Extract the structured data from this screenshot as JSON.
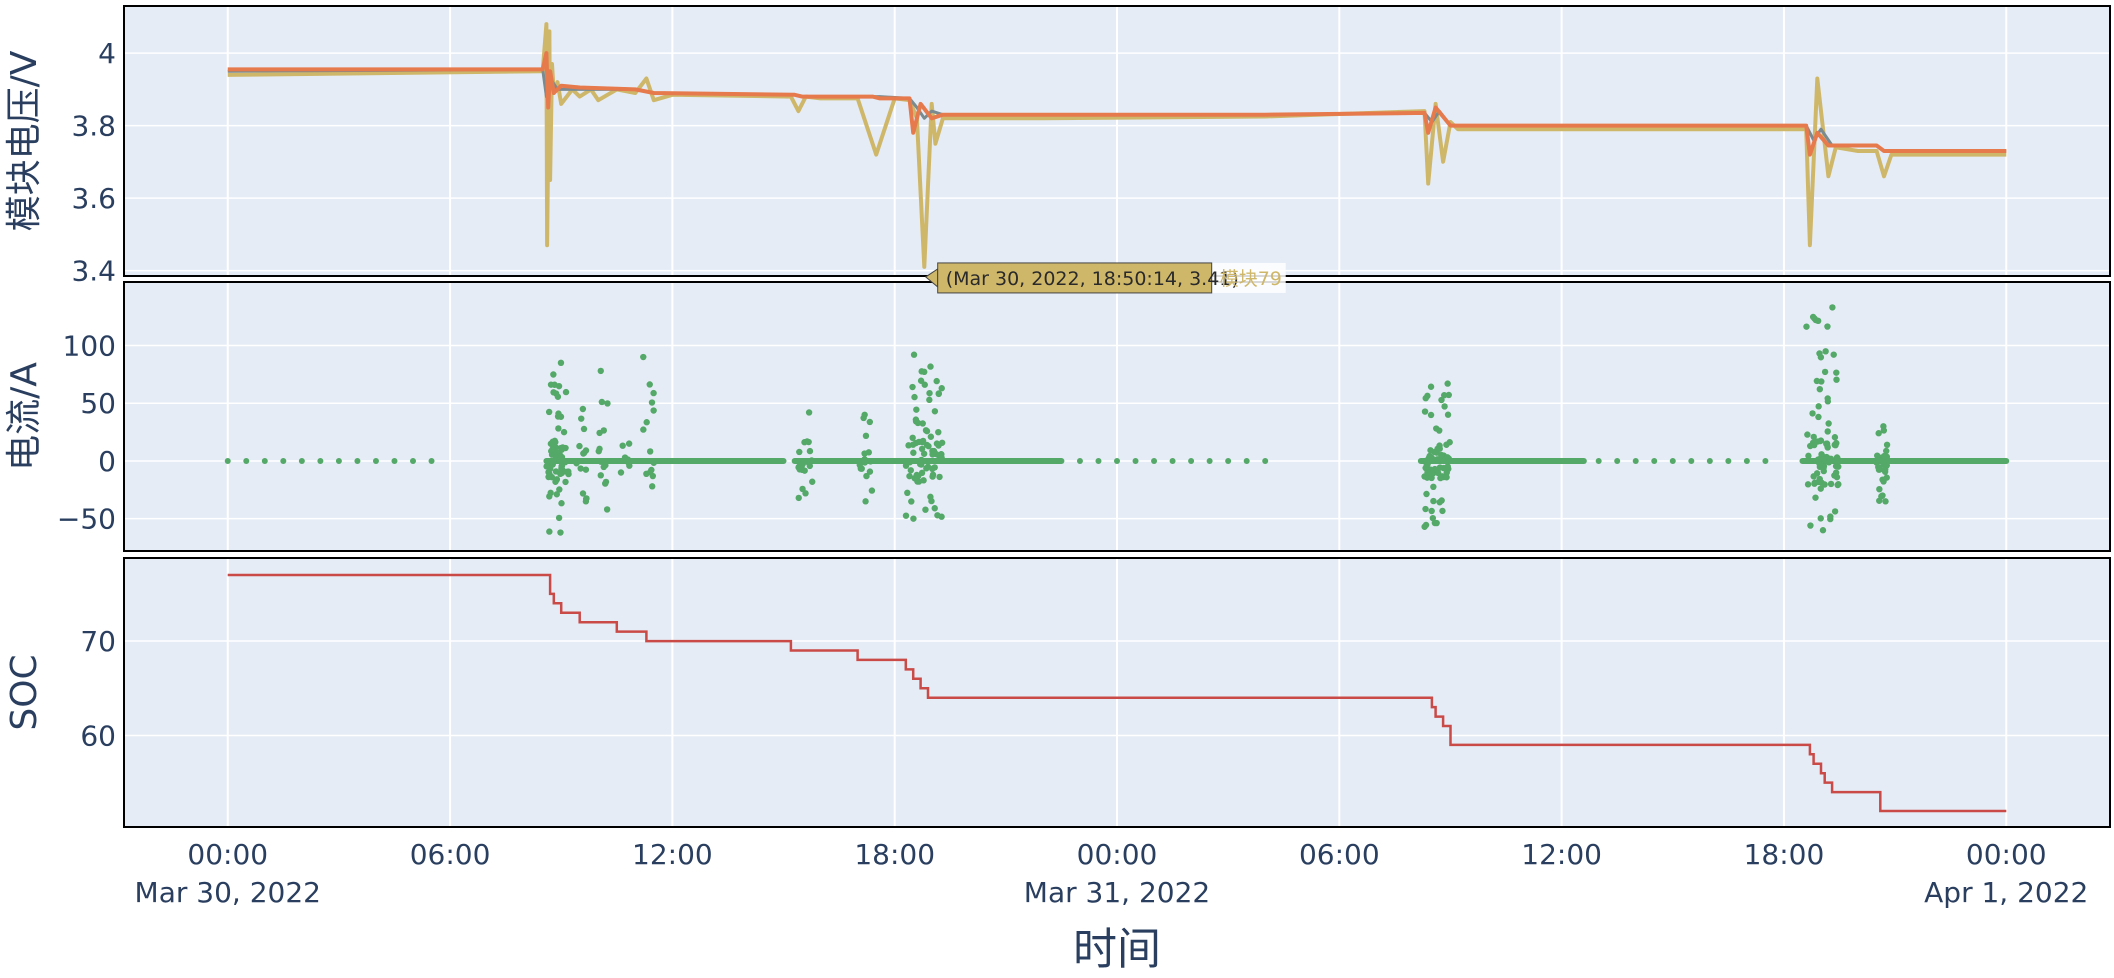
{
  "chart_data": [
    {
      "type": "line",
      "panel": "voltage",
      "ylabel": "模块电压/V",
      "yticks": [
        3.4,
        3.6,
        3.8,
        4
      ],
      "ylim": [
        3.385,
        4.13
      ],
      "colors": [
        "#cfb76a",
        "#7a8a8f",
        "#e67a4c"
      ],
      "series": [
        {
          "name": "",
          "x": [
            0,
            8.5,
            8.6,
            8.62,
            8.68,
            8.7,
            8.75,
            8.8,
            8.9,
            9.0,
            9.3,
            9.5,
            9.8,
            10.0,
            10.5,
            11.0,
            11.3,
            11.5,
            12.0,
            15.2,
            15.4,
            15.6,
            16.0,
            17.0,
            17.5,
            18.0,
            18.4,
            18.6,
            18.8,
            19.0,
            19.1,
            19.3,
            20.0,
            22.0,
            28.0,
            32.3,
            32.4,
            32.6,
            32.8,
            33.0,
            33.2,
            36.0,
            42.6,
            42.7,
            42.9,
            43.2,
            43.4,
            44.0,
            44.5,
            44.7,
            44.9,
            48.0
          ],
          "y": [
            3.94,
            3.95,
            4.08,
            3.47,
            4.06,
            3.65,
            3.97,
            3.89,
            3.92,
            3.86,
            3.9,
            3.88,
            3.9,
            3.87,
            3.9,
            3.89,
            3.93,
            3.87,
            3.885,
            3.88,
            3.84,
            3.88,
            3.875,
            3.875,
            3.72,
            3.875,
            3.87,
            3.82,
            3.41,
            3.86,
            3.75,
            3.82,
            3.82,
            3.82,
            3.825,
            3.84,
            3.64,
            3.86,
            3.7,
            3.81,
            3.79,
            3.79,
            3.79,
            3.47,
            3.93,
            3.66,
            3.74,
            3.73,
            3.73,
            3.66,
            3.72,
            3.72
          ]
        },
        {
          "name": "",
          "x": [
            0,
            8.5,
            8.6,
            8.7,
            8.9,
            9.5,
            11.0,
            11.5,
            15.3,
            15.5,
            17.4,
            17.6,
            18.4,
            18.6,
            18.8,
            19.0,
            19.3,
            22.0,
            28.0,
            32.3,
            32.5,
            32.7,
            33.0,
            42.6,
            42.8,
            43.0,
            43.3,
            44.5,
            44.7,
            48.0
          ],
          "y": [
            3.95,
            3.955,
            3.88,
            3.93,
            3.9,
            3.9,
            3.9,
            3.89,
            3.885,
            3.88,
            3.88,
            3.88,
            3.875,
            3.85,
            3.82,
            3.84,
            3.83,
            3.83,
            3.83,
            3.835,
            3.81,
            3.84,
            3.8,
            3.8,
            3.76,
            3.79,
            3.745,
            3.745,
            3.73,
            3.73
          ]
        },
        {
          "name": "",
          "x": [
            0,
            8.5,
            8.6,
            8.65,
            8.7,
            8.8,
            9.0,
            9.5,
            11.0,
            11.5,
            15.3,
            15.5,
            17.4,
            17.6,
            18.4,
            18.5,
            18.7,
            19.0,
            19.3,
            22.0,
            28.0,
            32.3,
            32.4,
            32.6,
            33.0,
            42.6,
            42.7,
            42.9,
            43.2,
            44.5,
            44.7,
            48.0
          ],
          "y": [
            3.955,
            3.955,
            4.0,
            3.85,
            3.95,
            3.89,
            3.91,
            3.905,
            3.9,
            3.89,
            3.885,
            3.88,
            3.88,
            3.875,
            3.875,
            3.78,
            3.86,
            3.82,
            3.83,
            3.83,
            3.83,
            3.835,
            3.78,
            3.85,
            3.8,
            3.8,
            3.72,
            3.78,
            3.745,
            3.745,
            3.73,
            3.73
          ]
        }
      ],
      "tooltip": {
        "text": "(Mar 30, 2022, 18:50:14, 3.41)",
        "name": "模块79",
        "x": 18.837,
        "y": 3.41
      }
    },
    {
      "type": "scatter",
      "panel": "current",
      "ylabel": "电流/A",
      "yticks": [
        -50,
        0,
        50,
        100
      ],
      "ylim": [
        -78,
        155
      ],
      "color": "#54a868",
      "bursts": [
        {
          "start": 8.6,
          "end": 9.2,
          "min": -62,
          "max": 85,
          "n": 70
        },
        {
          "start": 9.4,
          "end": 9.7,
          "min": -35,
          "max": 45,
          "n": 14
        },
        {
          "start": 10.0,
          "end": 10.3,
          "min": -42,
          "max": 78,
          "n": 14
        },
        {
          "start": 10.6,
          "end": 10.9,
          "min": -10,
          "max": 15,
          "n": 8
        },
        {
          "start": 11.2,
          "end": 11.5,
          "min": -22,
          "max": 90,
          "n": 14
        },
        {
          "start": 15.4,
          "end": 15.8,
          "min": -32,
          "max": 42,
          "n": 22
        },
        {
          "start": 17.0,
          "end": 17.4,
          "min": -35,
          "max": 40,
          "n": 16
        },
        {
          "start": 18.3,
          "end": 19.3,
          "min": -50,
          "max": 92,
          "n": 80
        },
        {
          "start": 32.3,
          "end": 33.0,
          "min": -57,
          "max": 67,
          "n": 70
        },
        {
          "start": 42.6,
          "end": 43.5,
          "min": -60,
          "max": 133,
          "n": 85
        },
        {
          "start": 44.5,
          "end": 44.8,
          "min": -35,
          "max": 30,
          "n": 28
        }
      ],
      "dense_zero": [
        [
          8.6,
          15.0
        ],
        [
          15.3,
          22.5
        ],
        [
          32.2,
          36.6
        ],
        [
          42.5,
          48.0
        ]
      ],
      "sparse_zero": [
        [
          0,
          5.5
        ],
        [
          23.0,
          28.0
        ],
        [
          37.0,
          41.5
        ]
      ]
    },
    {
      "type": "line",
      "panel": "soc",
      "ylabel": "SOC",
      "yticks": [
        60,
        70
      ],
      "ylim": [
        50.3,
        78.8
      ],
      "color": "#c94a47",
      "x": [
        0,
        8.6,
        8.7,
        8.8,
        9.0,
        9.5,
        10.0,
        10.5,
        11.3,
        12.0,
        15.2,
        16.0,
        17.0,
        18.1,
        18.3,
        18.5,
        18.7,
        18.9,
        19.1,
        22.0,
        28.0,
        32.4,
        32.5,
        32.6,
        32.8,
        33.0,
        36.0,
        42.5,
        42.7,
        42.8,
        43.0,
        43.1,
        43.3,
        44.0,
        44.6,
        48.0
      ],
      "y": [
        77,
        77,
        75,
        74,
        73,
        72,
        72,
        71,
        70,
        70,
        69,
        69,
        68,
        68,
        67,
        66,
        65,
        64,
        64,
        64,
        64,
        64,
        63,
        62,
        61,
        59,
        59,
        59,
        58,
        57,
        56,
        55,
        54,
        54,
        52,
        52
      ]
    }
  ],
  "x_axis": {
    "title": "时间",
    "range_hours": [
      -2.8,
      50.8
    ],
    "ticks": [
      {
        "hour": 0,
        "label": "00:00",
        "date": "Mar 30, 2022"
      },
      {
        "hour": 6,
        "label": "06:00",
        "date": ""
      },
      {
        "hour": 12,
        "label": "12:00",
        "date": ""
      },
      {
        "hour": 18,
        "label": "18:00",
        "date": ""
      },
      {
        "hour": 24,
        "label": "00:00",
        "date": "Mar 31, 2022"
      },
      {
        "hour": 30,
        "label": "06:00",
        "date": ""
      },
      {
        "hour": 36,
        "label": "12:00",
        "date": ""
      },
      {
        "hour": 42,
        "label": "18:00",
        "date": ""
      },
      {
        "hour": 48,
        "label": "00:00",
        "date": "Apr 1, 2022"
      }
    ]
  }
}
